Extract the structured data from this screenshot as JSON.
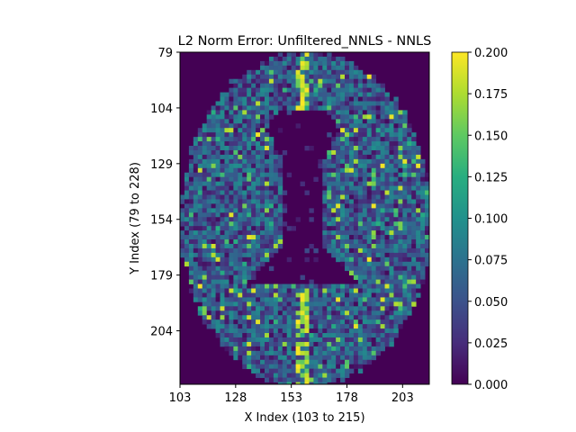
{
  "chart_data": {
    "type": "heatmap",
    "title": "L2 Norm Error: Unfiltered_NNLS - NNLS",
    "xlabel": "X Index (103 to 215)",
    "ylabel": "Y Index (79 to 228)",
    "xlim": [
      103,
      215
    ],
    "ylim": [
      79,
      228
    ],
    "y_inverted": true,
    "xticks": [
      103,
      128,
      153,
      178,
      203
    ],
    "yticks": [
      79,
      104,
      129,
      154,
      179,
      204
    ],
    "colormap": "viridis",
    "color_range": [
      0.0,
      0.2
    ],
    "colorbar_ticks": [
      "0.000",
      "0.025",
      "0.050",
      "0.075",
      "0.100",
      "0.125",
      "0.150",
      "0.175",
      "0.200"
    ],
    "grid": false,
    "background_value": 0.0,
    "brain_mask": {
      "center_x": 159.5,
      "center_y": 154,
      "radius_x": 56.5,
      "radius_y": 75
    },
    "ventricle_region": "near zero error in central ventricles",
    "typical_tissue_error": 0.06,
    "hotspot_error": 0.2
  }
}
